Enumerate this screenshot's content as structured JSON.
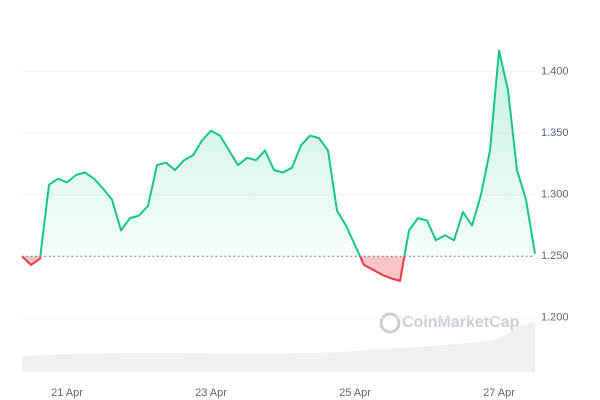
{
  "chart_data": {
    "type": "line",
    "categories": [
      null,
      null,
      null,
      null,
      null,
      "21 Apr",
      null,
      null,
      null,
      null,
      null,
      null,
      null,
      null,
      null,
      null,
      null,
      null,
      null,
      null,
      null,
      "23 Apr",
      null,
      null,
      null,
      null,
      null,
      null,
      null,
      null,
      null,
      null,
      null,
      null,
      null,
      null,
      null,
      "25 Apr",
      null,
      null,
      null,
      null,
      null,
      null,
      null,
      null,
      null,
      null,
      null,
      null,
      null,
      null,
      null,
      "27 Apr",
      null,
      null,
      null,
      null
    ],
    "values": [
      1.25,
      1.243,
      1.248,
      1.308,
      1.313,
      1.31,
      1.316,
      1.318,
      1.313,
      1.305,
      1.296,
      1.271,
      1.281,
      1.283,
      1.291,
      1.324,
      1.326,
      1.32,
      1.328,
      1.332,
      1.344,
      1.352,
      1.348,
      1.336,
      1.324,
      1.33,
      1.328,
      1.336,
      1.32,
      1.318,
      1.322,
      1.34,
      1.348,
      1.346,
      1.336,
      1.287,
      1.275,
      1.259,
      1.243,
      1.239,
      1.235,
      1.232,
      1.23,
      1.271,
      1.281,
      1.279,
      1.263,
      1.267,
      1.263,
      1.286,
      1.275,
      1.3,
      1.336,
      1.417,
      1.385,
      1.32,
      1.296,
      1.252
    ],
    "baseline": 1.25,
    "color_up": "#16c784",
    "color_down": "#ea3943",
    "ylim": [
      1.156,
      1.45
    ],
    "yticks": [
      {
        "value": 1.2,
        "label": "1.200"
      },
      {
        "value": 1.25,
        "label": "1.250"
      },
      {
        "value": 1.3,
        "label": "1.300"
      },
      {
        "value": 1.35,
        "label": "1.350"
      },
      {
        "value": 1.4,
        "label": "1.400"
      }
    ],
    "grid": true,
    "watermark": "CoinMarketCap"
  }
}
